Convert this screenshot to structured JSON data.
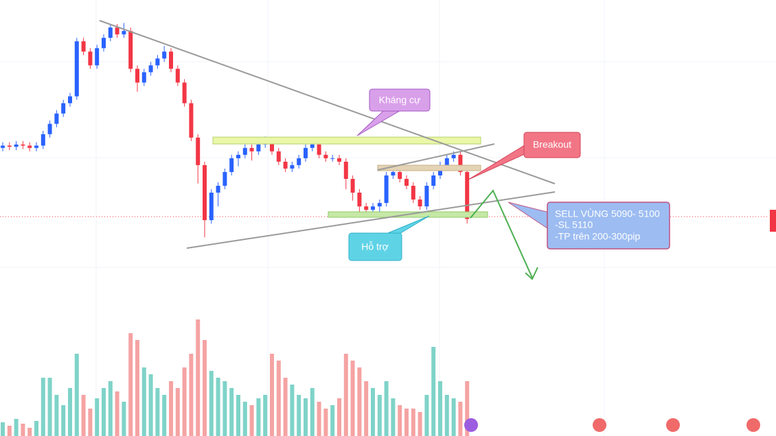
{
  "chart_data": {
    "type": "candlestick",
    "open": [
      5156,
      5158,
      5157,
      5159,
      5158,
      5156,
      5158,
      5168,
      5177,
      5186,
      5195,
      5201,
      5249,
      5240,
      5228,
      5243,
      5252,
      5261,
      5255,
      5258,
      5225,
      5213,
      5222,
      5228,
      5234,
      5240,
      5225,
      5213,
      5195,
      5165,
      5141,
      5093,
      5117,
      5123,
      5135,
      5147,
      5150,
      5156,
      5153,
      5159,
      5162,
      5153,
      5144,
      5138,
      5141,
      5147,
      5156,
      5159,
      5150,
      5147,
      5147,
      5144,
      5129,
      5117,
      5105,
      5102,
      5105,
      5108,
      5132,
      5135,
      5129,
      5123,
      5111,
      5105,
      5123,
      5132,
      5141,
      5147,
      5150,
      5135
    ],
    "high": [
      5161,
      5161,
      5162,
      5162,
      5161,
      5161,
      5171,
      5180,
      5189,
      5198,
      5204,
      5252,
      5252,
      5243,
      5246,
      5255,
      5264,
      5264,
      5265,
      5261,
      5228,
      5225,
      5231,
      5237,
      5245,
      5243,
      5228,
      5216,
      5198,
      5168,
      5144,
      5120,
      5126,
      5138,
      5150,
      5153,
      5159,
      5159,
      5162,
      5166,
      5165,
      5156,
      5147,
      5144,
      5150,
      5159,
      5162,
      5162,
      5153,
      5150,
      5150,
      5147,
      5132,
      5120,
      5108,
      5108,
      5111,
      5135,
      5138,
      5138,
      5132,
      5126,
      5114,
      5126,
      5135,
      5144,
      5150,
      5153,
      5153,
      5138
    ],
    "low": [
      5153,
      5154,
      5154,
      5155,
      5153,
      5153,
      5155,
      5165,
      5174,
      5183,
      5192,
      5198,
      5237,
      5225,
      5225,
      5240,
      5249,
      5252,
      5252,
      5222,
      5205,
      5210,
      5219,
      5225,
      5231,
      5222,
      5210,
      5192,
      5162,
      5125,
      5078,
      5090,
      5105,
      5120,
      5132,
      5140,
      5147,
      5145,
      5150,
      5156,
      5150,
      5141,
      5135,
      5135,
      5138,
      5144,
      5153,
      5147,
      5144,
      5144,
      5141,
      5120,
      5110,
      5100,
      5097,
      5099,
      5100,
      5105,
      5129,
      5126,
      5120,
      5108,
      5102,
      5102,
      5120,
      5129,
      5138,
      5144,
      5132,
      5090
    ],
    "close": [
      5158,
      5157,
      5159,
      5158,
      5156,
      5158,
      5168,
      5177,
      5186,
      5195,
      5201,
      5249,
      5240,
      5228,
      5243,
      5252,
      5261,
      5255,
      5258,
      5225,
      5213,
      5222,
      5228,
      5234,
      5240,
      5225,
      5213,
      5195,
      5165,
      5141,
      5093,
      5117,
      5123,
      5135,
      5147,
      5150,
      5156,
      5153,
      5159,
      5162,
      5153,
      5144,
      5138,
      5141,
      5147,
      5156,
      5159,
      5150,
      5147,
      5147,
      5144,
      5129,
      5117,
      5105,
      5102,
      5105,
      5108,
      5132,
      5135,
      5129,
      5123,
      5111,
      5105,
      5123,
      5132,
      5141,
      5147,
      5150,
      5135,
      5094
    ],
    "volume": [
      20,
      15,
      25,
      18,
      12,
      22,
      85,
      85,
      60,
      45,
      70,
      120,
      60,
      40,
      55,
      70,
      80,
      65,
      50,
      150,
      140,
      100,
      90,
      70,
      60,
      80,
      70,
      100,
      120,
      170,
      140,
      95,
      85,
      80,
      70,
      60,
      50,
      45,
      55,
      60,
      120,
      110,
      85,
      75,
      60,
      55,
      70,
      50,
      40,
      45,
      55,
      120,
      110,
      100,
      80,
      70,
      60,
      80,
      55,
      45,
      40,
      40,
      35,
      60,
      130,
      80,
      60,
      55,
      50,
      80
    ],
    "ylim": [
      5010,
      5285
    ],
    "y2lim": [
      0,
      180
    ],
    "up_color": "#2962ff",
    "down_color": "#f23645",
    "volume_up_color": "#7fd3c8",
    "volume_down_color": "#f5a3a3",
    "annotations": {
      "resistance": "Kháng cự",
      "breakout": "Breakout",
      "support": "Hỗ trợ",
      "plan": [
        "SELL VÙNG 5090- 5100",
        "-SL 5110",
        "-TP trên 200-300pip"
      ]
    }
  }
}
